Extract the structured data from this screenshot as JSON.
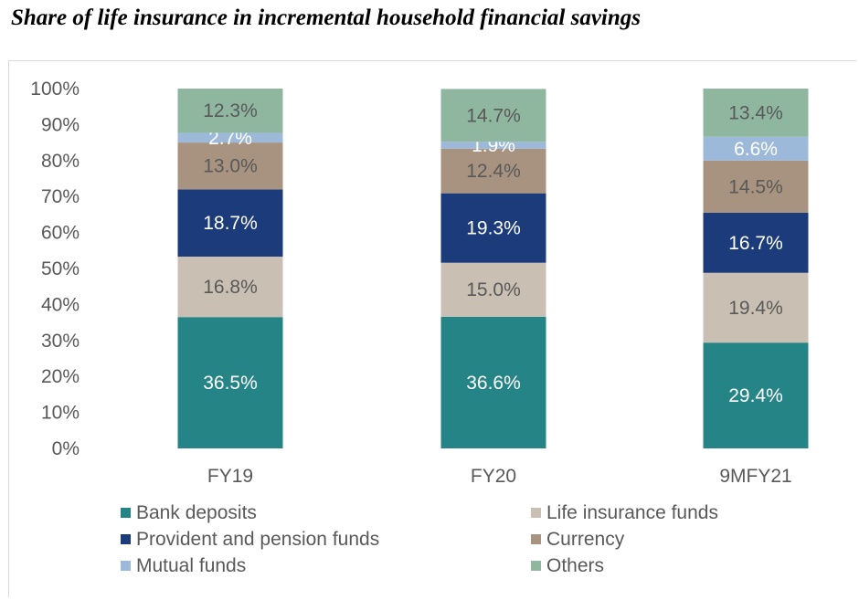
{
  "chart_data": {
    "type": "bar",
    "stacked": true,
    "title": "Share of life insurance in incremental household financial savings",
    "categories": [
      "FY19",
      "FY20",
      "9MFY21"
    ],
    "series": [
      {
        "name": "Bank deposits",
        "color": "#258486",
        "label_color": "#ffffff",
        "values": [
          36.5,
          36.6,
          29.4
        ],
        "labels": [
          "36.5%",
          "36.6%",
          "29.4%"
        ]
      },
      {
        "name": "Life insurance funds",
        "color": "#c9bfb3",
        "label_color": "#595959",
        "values": [
          16.8,
          15.0,
          19.4
        ],
        "labels": [
          "16.8%",
          "15.0%",
          "19.4%"
        ]
      },
      {
        "name": "Provident and pension funds",
        "color": "#1c3b7a",
        "label_color": "#ffffff",
        "values": [
          18.7,
          19.3,
          16.7
        ],
        "labels": [
          "18.7%",
          "19.3%",
          "16.7%"
        ]
      },
      {
        "name": "Currency",
        "color": "#a7937f",
        "label_color": "#595959",
        "values": [
          13.0,
          12.4,
          14.5
        ],
        "labels": [
          "13.0%",
          "12.4%",
          "14.5%"
        ]
      },
      {
        "name": "Mutual funds",
        "color": "#9cb9d9",
        "label_color": "#ffffff",
        "values": [
          2.7,
          1.9,
          6.6
        ],
        "labels": [
          "2.7%",
          "1.9%",
          "6.6%"
        ]
      },
      {
        "name": "Others",
        "color": "#8fb7a0",
        "label_color": "#595959",
        "values": [
          12.3,
          14.7,
          13.4
        ],
        "labels": [
          "12.3%",
          "14.7%",
          "13.4%"
        ]
      }
    ],
    "y_ticks": [
      "0%",
      "10%",
      "20%",
      "30%",
      "40%",
      "50%",
      "60%",
      "70%",
      "80%",
      "90%",
      "100%"
    ],
    "ylim": [
      0,
      100
    ],
    "grid": false,
    "legend_position": "bottom"
  }
}
